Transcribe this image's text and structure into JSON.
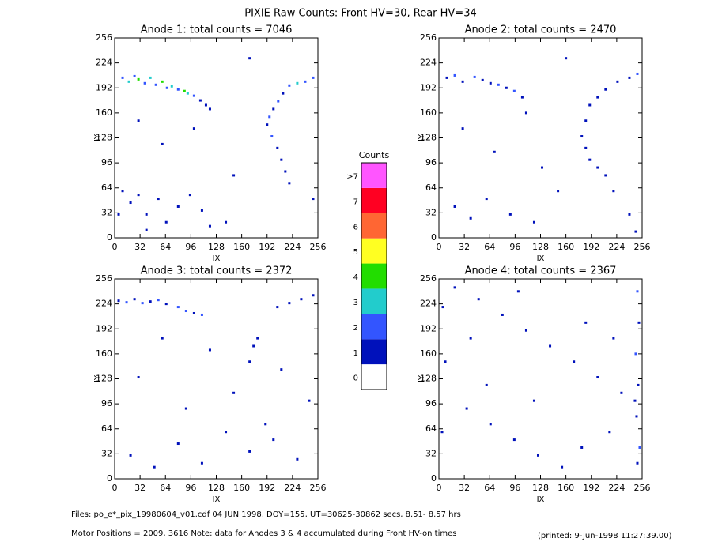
{
  "title": "PIXIE Raw Counts:  Front HV=30, Rear HV=34",
  "footer": {
    "files": "Files: po_e*_pix_19980604_v01.cdf    04 JUN 1998, DOY=155, UT=30625-30862 secs,  8.51- 8.57 hrs",
    "motor": "Motor Positions = 2009, 3616   Note: data for Anodes 3 & 4 accumulated during Front HV-on times",
    "printed": "(printed:  9-Jun-1998 11:27:39.00)"
  },
  "colorbar": {
    "title": "Counts",
    "levels": [
      {
        "label": "0",
        "color": "#ffffff"
      },
      {
        "label": "1",
        "color": "#0011bb"
      },
      {
        "label": "2",
        "color": "#3355ff"
      },
      {
        "label": "3",
        "color": "#22cccc"
      },
      {
        "label": "4",
        "color": "#22dd00"
      },
      {
        "label": "5",
        "color": "#ffff22"
      },
      {
        "label": "6",
        "color": "#ff6633"
      },
      {
        "label": "7",
        "color": "#ff0022"
      },
      {
        "label": ">7",
        "color": "#ff55ff"
      }
    ]
  },
  "chart_data": [
    {
      "type": "scatter",
      "title": "Anode 1: total counts = 7046",
      "xlabel": "IX",
      "ylabel": "IY",
      "xlim": [
        0,
        256
      ],
      "ylim": [
        0,
        256
      ],
      "xticks": [
        0,
        32,
        64,
        96,
        128,
        160,
        192,
        224,
        256
      ],
      "yticks": [
        0,
        32,
        64,
        96,
        128,
        160,
        192,
        224,
        256
      ],
      "x": [
        10,
        18,
        25,
        30,
        38,
        45,
        52,
        60,
        66,
        72,
        80,
        88,
        92,
        100,
        108,
        115,
        120,
        250,
        240,
        230,
        220,
        212,
        206,
        200,
        195,
        192,
        198,
        205,
        210,
        215,
        220,
        10,
        20,
        30,
        40,
        55,
        65,
        80,
        95,
        110,
        120,
        5,
        40,
        60,
        150,
        170,
        100,
        30,
        250,
        140
      ],
      "y": [
        205,
        200,
        207,
        203,
        198,
        205,
        196,
        200,
        192,
        194,
        190,
        188,
        185,
        182,
        176,
        170,
        165,
        205,
        200,
        198,
        195,
        185,
        175,
        165,
        155,
        145,
        130,
        115,
        100,
        85,
        70,
        60,
        45,
        55,
        30,
        50,
        20,
        40,
        55,
        35,
        15,
        30,
        10,
        120,
        80,
        230,
        140,
        150,
        50,
        20
      ],
      "values": [
        2,
        3,
        2,
        4,
        2,
        3,
        2,
        4,
        2,
        3,
        2,
        4,
        3,
        2,
        1,
        1,
        1,
        2,
        2,
        3,
        2,
        1,
        2,
        1,
        2,
        1,
        2,
        1,
        1,
        1,
        1,
        1,
        1,
        1,
        1,
        1,
        1,
        1,
        1,
        1,
        1,
        1,
        1,
        1,
        1,
        1,
        1,
        1,
        1,
        1
      ]
    },
    {
      "type": "scatter",
      "title": "Anode 2: total counts = 2470",
      "xlabel": "IX",
      "ylabel": "IY",
      "xlim": [
        0,
        256
      ],
      "ylim": [
        0,
        256
      ],
      "xticks": [
        0,
        32,
        64,
        96,
        128,
        160,
        192,
        224,
        256
      ],
      "yticks": [
        0,
        32,
        64,
        96,
        128,
        160,
        192,
        224,
        256
      ],
      "x": [
        10,
        20,
        30,
        45,
        55,
        65,
        75,
        85,
        95,
        105,
        250,
        240,
        225,
        210,
        200,
        190,
        185,
        180,
        185,
        190,
        200,
        210,
        20,
        40,
        60,
        90,
        120,
        150,
        240,
        248,
        30,
        70,
        110,
        160,
        220,
        130
      ],
      "y": [
        205,
        208,
        200,
        206,
        202,
        198,
        196,
        192,
        188,
        180,
        210,
        205,
        200,
        190,
        180,
        170,
        150,
        130,
        115,
        100,
        90,
        80,
        40,
        25,
        50,
        30,
        20,
        60,
        30,
        8,
        140,
        110,
        160,
        230,
        60,
        90
      ],
      "values": [
        1,
        2,
        1,
        2,
        1,
        1,
        2,
        1,
        2,
        1,
        2,
        1,
        1,
        1,
        1,
        1,
        1,
        1,
        1,
        1,
        1,
        1,
        1,
        1,
        1,
        1,
        1,
        1,
        1,
        1,
        1,
        1,
        1,
        1,
        1,
        1
      ]
    },
    {
      "type": "scatter",
      "title": "Anode 3: total counts = 2372",
      "xlabel": "IX",
      "ylabel": "IY",
      "xlim": [
        0,
        256
      ],
      "ylim": [
        0,
        256
      ],
      "xticks": [
        0,
        32,
        64,
        96,
        128,
        160,
        192,
        224,
        256
      ],
      "yticks": [
        0,
        32,
        64,
        96,
        128,
        160,
        192,
        224,
        256
      ],
      "x": [
        5,
        15,
        25,
        35,
        45,
        55,
        65,
        80,
        90,
        100,
        110,
        250,
        235,
        220,
        205,
        180,
        175,
        170,
        20,
        50,
        80,
        110,
        140,
        170,
        200,
        230,
        30,
        90,
        150,
        210,
        245,
        60,
        120,
        190
      ],
      "y": [
        228,
        226,
        230,
        225,
        227,
        229,
        224,
        220,
        215,
        212,
        210,
        235,
        230,
        225,
        220,
        180,
        170,
        150,
        30,
        15,
        45,
        20,
        60,
        35,
        50,
        25,
        130,
        90,
        110,
        140,
        100,
        180,
        165,
        70
      ],
      "values": [
        1,
        2,
        1,
        2,
        1,
        2,
        1,
        2,
        2,
        1,
        2,
        1,
        1,
        1,
        1,
        1,
        1,
        1,
        1,
        1,
        1,
        1,
        1,
        1,
        1,
        1,
        1,
        1,
        1,
        1,
        1,
        1,
        1,
        1
      ]
    },
    {
      "type": "scatter",
      "title": "Anode 4: total counts = 2367",
      "xlabel": "IX",
      "ylabel": "IY",
      "xlim": [
        0,
        256
      ],
      "ylim": [
        0,
        256
      ],
      "xticks": [
        0,
        32,
        64,
        96,
        128,
        160,
        192,
        224,
        256
      ],
      "yticks": [
        0,
        32,
        64,
        96,
        128,
        160,
        192,
        224,
        256
      ],
      "x": [
        250,
        252,
        248,
        251,
        249,
        253,
        250,
        247,
        5,
        8,
        4,
        20,
        50,
        80,
        110,
        140,
        170,
        200,
        230,
        35,
        65,
        95,
        125,
        155,
        185,
        215,
        60,
        120,
        180,
        100,
        40,
        220
      ],
      "y": [
        240,
        200,
        160,
        120,
        80,
        40,
        20,
        100,
        220,
        150,
        60,
        245,
        230,
        210,
        190,
        170,
        150,
        130,
        110,
        90,
        70,
        50,
        30,
        15,
        200,
        60,
        120,
        100,
        40,
        240,
        180,
        180
      ],
      "values": [
        2,
        1,
        2,
        1,
        1,
        2,
        1,
        1,
        1,
        1,
        1,
        1,
        1,
        1,
        1,
        1,
        1,
        1,
        1,
        1,
        1,
        1,
        1,
        1,
        1,
        1,
        1,
        1,
        1,
        1,
        1,
        1
      ]
    }
  ]
}
